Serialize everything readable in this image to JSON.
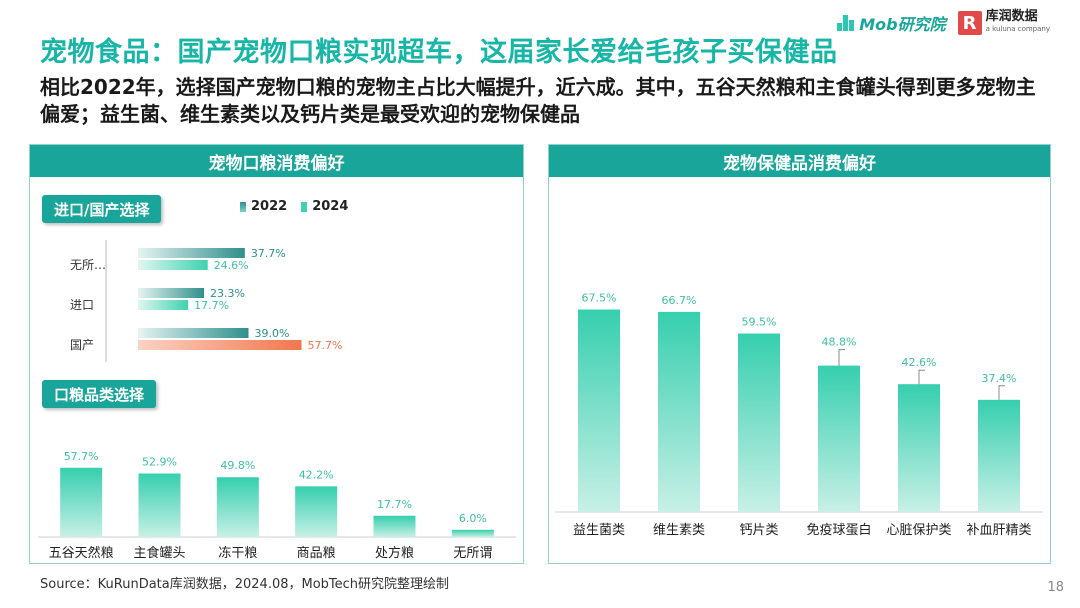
{
  "header": {
    "title": "宠物食品：国产宠物口粮实现超车，这届家长爱给毛孩子买保健品",
    "subtitle": "相比2022年，选择国产宠物口粮的宠物主占比大幅提升，近六成。其中，五谷天然粮和主食罐头得到更多宠物主偏爱；益生菌、维生素类以及钙片类是最受欢迎的宠物保健品"
  },
  "logos": {
    "mob": "Mob研究院",
    "kurun": "库润数据",
    "kurun_sub": "a kuluna company",
    "kurun_mark": "R"
  },
  "colors": {
    "teal_dark": "#19a599",
    "teal": "#3fd1b0",
    "orange": "#f2764f",
    "legend_2022": "#2f8f8c"
  },
  "chart_data": [
    {
      "panel_title": "宠物口粮消费偏好",
      "section_tag": "进口/国产选择",
      "type": "bar",
      "orientation": "horizontal",
      "categories": [
        "无所…",
        "进口",
        "国产"
      ],
      "series": [
        {
          "name": "2022",
          "values": [
            37.7,
            23.3,
            39.0
          ]
        },
        {
          "name": "2024",
          "values": [
            24.6,
            17.7,
            57.7
          ]
        }
      ],
      "unit": "%",
      "highlight": {
        "category": "国产",
        "series": "2024"
      }
    },
    {
      "section_tag": "口粮品类选择",
      "type": "bar",
      "categories": [
        "五谷天然粮",
        "主食罐头",
        "冻干粮",
        "商品粮",
        "处方粮",
        "无所谓"
      ],
      "values": [
        57.7,
        52.9,
        49.8,
        42.2,
        17.7,
        6.0
      ],
      "unit": "%"
    },
    {
      "panel_title": "宠物保健品消费偏好",
      "type": "bar",
      "categories": [
        "益生菌类",
        "维生素类",
        "钙片类",
        "免疫球蛋白",
        "心脏保护类",
        "补血肝精类"
      ],
      "values": [
        67.5,
        66.7,
        59.5,
        48.8,
        42.6,
        37.4
      ],
      "unit": "%"
    }
  ],
  "footer": {
    "source": "Source：KuRunData库润数据，2024.08，MobTech研究院整理绘制",
    "page": "18"
  }
}
